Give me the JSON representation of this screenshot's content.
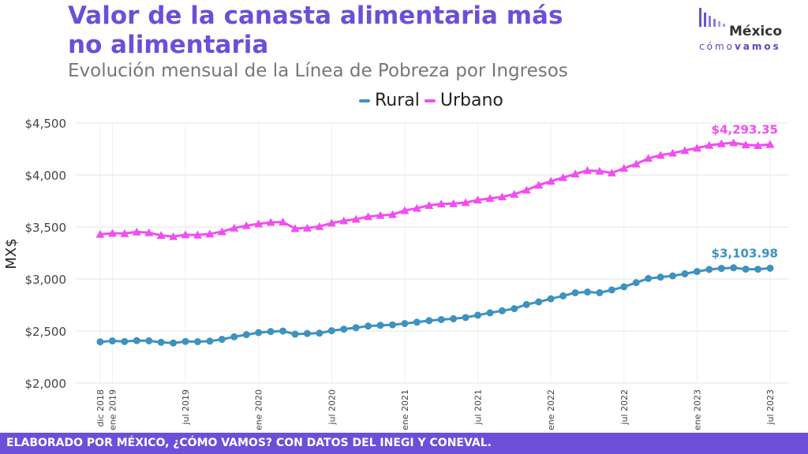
{
  "title_line1": "Valor de la canasta alimentaria más",
  "title_line2": "no alimentaria",
  "subtitle": "Evolución mensual de la Línea de Pobreza por Ingresos",
  "logo": {
    "brand": "México",
    "sub_light": "cómo",
    "sub_bold": "vamos"
  },
  "footer": "ELABORADO POR MÉXICO, ¿CÓMO VAMOS? CON DATOS DEL INEGI Y CONEVAL.",
  "colors": {
    "accent": "#6c4fd8",
    "rural": "#3d92bf",
    "urbano": "#f04ef0"
  },
  "chart_data": {
    "type": "line",
    "ylabel": "MX$",
    "xlabel": "",
    "ylim": [
      2000,
      4500
    ],
    "yticks": [
      2000,
      2500,
      3000,
      3500,
      4000,
      4500
    ],
    "ytick_labels": [
      "$2,000",
      "$2,500",
      "$3,000",
      "$3,500",
      "$4,000",
      "$4,500"
    ],
    "grid": true,
    "legend_position": "top",
    "x_start": "dic 2018",
    "x_ticks": [
      {
        "index": 0,
        "label": "dic 2018"
      },
      {
        "index": 1,
        "label": "ene 2019"
      },
      {
        "index": 7,
        "label": "jul 2019"
      },
      {
        "index": 13,
        "label": "ene 2020"
      },
      {
        "index": 19,
        "label": "jul 2020"
      },
      {
        "index": 25,
        "label": "ene 2021"
      },
      {
        "index": 31,
        "label": "jul 2021"
      },
      {
        "index": 37,
        "label": "ene 2022"
      },
      {
        "index": 43,
        "label": "jul 2022"
      },
      {
        "index": 49,
        "label": "ene 2023"
      },
      {
        "index": 55,
        "label": "jul 2023"
      }
    ],
    "series": [
      {
        "name": "Rural",
        "color": "#3d92bf",
        "marker": "circle",
        "last_label": "$3,103.98",
        "values": [
          2396,
          2405,
          2399,
          2408,
          2406,
          2392,
          2385,
          2400,
          2398,
          2403,
          2420,
          2445,
          2465,
          2485,
          2495,
          2500,
          2470,
          2476,
          2480,
          2503,
          2518,
          2532,
          2548,
          2555,
          2560,
          2572,
          2585,
          2600,
          2610,
          2618,
          2630,
          2652,
          2675,
          2695,
          2715,
          2755,
          2780,
          2810,
          2838,
          2868,
          2875,
          2868,
          2895,
          2925,
          2965,
          3005,
          3018,
          3030,
          3050,
          3072,
          3092,
          3102,
          3108,
          3095,
          3094,
          3103.98
        ]
      },
      {
        "name": "Urbano",
        "color": "#f04ef0",
        "marker": "triangle",
        "last_label": "$4,293.35",
        "values": [
          3430,
          3440,
          3437,
          3452,
          3445,
          3420,
          3408,
          3425,
          3423,
          3433,
          3455,
          3490,
          3513,
          3530,
          3545,
          3548,
          3485,
          3490,
          3505,
          3538,
          3560,
          3575,
          3600,
          3612,
          3620,
          3658,
          3680,
          3708,
          3722,
          3725,
          3735,
          3760,
          3775,
          3790,
          3815,
          3855,
          3902,
          3940,
          3975,
          4010,
          4043,
          4037,
          4020,
          4065,
          4105,
          4160,
          4190,
          4210,
          4235,
          4258,
          4285,
          4300,
          4310,
          4290,
          4283,
          4293.35
        ]
      }
    ]
  }
}
